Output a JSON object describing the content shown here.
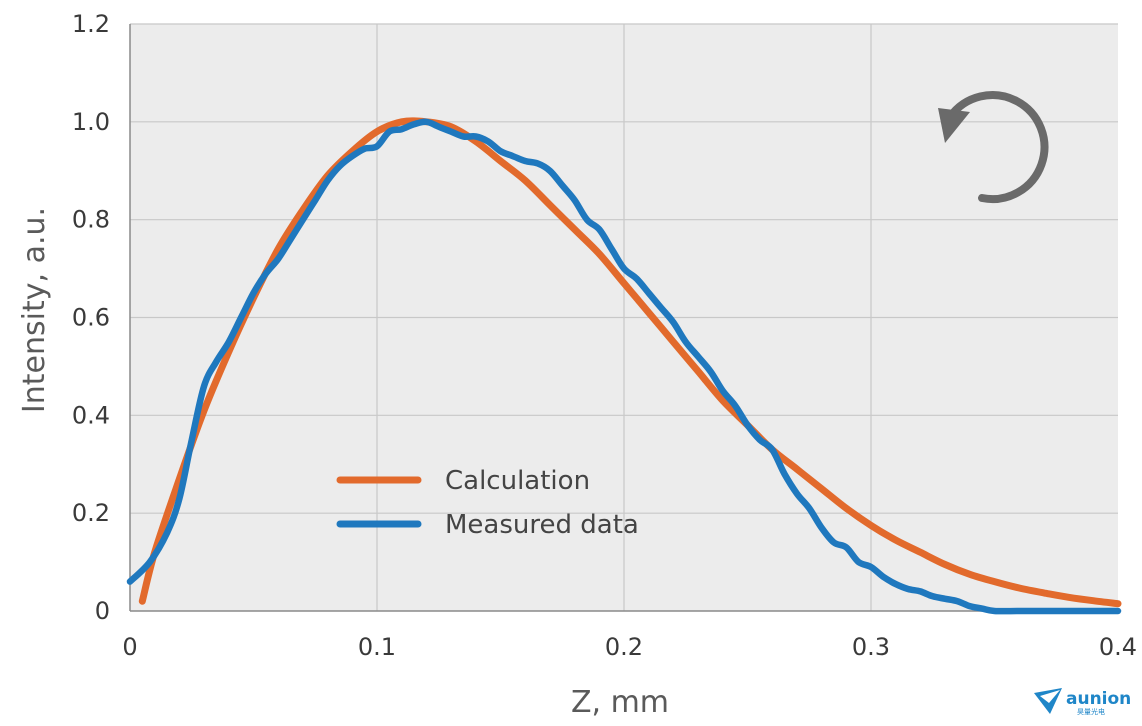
{
  "chart_data": {
    "type": "line",
    "xlabel": "Z, mm",
    "ylabel": "Intensity, a.u.",
    "xlim": [
      0,
      0.4
    ],
    "ylim": [
      0,
      1.2
    ],
    "x_ticks": [
      "0",
      "0.1",
      "0.2",
      "0.3",
      "0.4"
    ],
    "y_ticks": [
      "0",
      "0.2",
      "0.4",
      "0.6",
      "0.8",
      "1.0",
      "1.2"
    ],
    "grid": true,
    "legend_position": "lower-center",
    "series": [
      {
        "name": "Calculation",
        "color": "#e26a2c",
        "x": [
          0.005,
          0.01,
          0.02,
          0.03,
          0.04,
          0.05,
          0.06,
          0.07,
          0.08,
          0.09,
          0.1,
          0.11,
          0.12,
          0.13,
          0.14,
          0.15,
          0.16,
          0.17,
          0.18,
          0.19,
          0.2,
          0.21,
          0.22,
          0.23,
          0.24,
          0.25,
          0.26,
          0.27,
          0.28,
          0.29,
          0.3,
          0.31,
          0.32,
          0.33,
          0.34,
          0.35,
          0.36,
          0.37,
          0.38,
          0.39,
          0.4
        ],
        "values": [
          0.02,
          0.12,
          0.27,
          0.41,
          0.53,
          0.64,
          0.74,
          0.82,
          0.89,
          0.94,
          0.98,
          1.0,
          1.0,
          0.99,
          0.96,
          0.92,
          0.88,
          0.83,
          0.78,
          0.73,
          0.67,
          0.61,
          0.55,
          0.49,
          0.43,
          0.38,
          0.33,
          0.29,
          0.25,
          0.21,
          0.175,
          0.145,
          0.12,
          0.095,
          0.075,
          0.06,
          0.047,
          0.037,
          0.028,
          0.021,
          0.015
        ]
      },
      {
        "name": "Measured data",
        "color": "#1f78be",
        "x": [
          0.0,
          0.008,
          0.015,
          0.02,
          0.025,
          0.03,
          0.035,
          0.04,
          0.045,
          0.05,
          0.055,
          0.06,
          0.065,
          0.07,
          0.075,
          0.08,
          0.085,
          0.09,
          0.095,
          0.1,
          0.105,
          0.11,
          0.115,
          0.12,
          0.125,
          0.13,
          0.135,
          0.14,
          0.145,
          0.15,
          0.155,
          0.16,
          0.165,
          0.17,
          0.175,
          0.18,
          0.185,
          0.19,
          0.195,
          0.2,
          0.205,
          0.21,
          0.215,
          0.22,
          0.225,
          0.23,
          0.235,
          0.24,
          0.245,
          0.25,
          0.255,
          0.26,
          0.265,
          0.27,
          0.275,
          0.28,
          0.285,
          0.29,
          0.295,
          0.3,
          0.305,
          0.31,
          0.315,
          0.32,
          0.325,
          0.33,
          0.335,
          0.34,
          0.345,
          0.35,
          0.36,
          0.37,
          0.38,
          0.39,
          0.4
        ],
        "values": [
          0.06,
          0.1,
          0.16,
          0.23,
          0.35,
          0.46,
          0.51,
          0.55,
          0.6,
          0.65,
          0.69,
          0.72,
          0.76,
          0.8,
          0.84,
          0.88,
          0.91,
          0.93,
          0.945,
          0.95,
          0.98,
          0.985,
          0.995,
          1.0,
          0.99,
          0.98,
          0.97,
          0.97,
          0.96,
          0.94,
          0.93,
          0.92,
          0.915,
          0.9,
          0.87,
          0.84,
          0.8,
          0.78,
          0.74,
          0.7,
          0.68,
          0.65,
          0.62,
          0.59,
          0.55,
          0.52,
          0.49,
          0.45,
          0.42,
          0.38,
          0.35,
          0.33,
          0.28,
          0.24,
          0.21,
          0.17,
          0.14,
          0.13,
          0.1,
          0.09,
          0.07,
          0.055,
          0.045,
          0.04,
          0.03,
          0.025,
          0.02,
          0.01,
          0.005,
          0.0,
          0.0,
          0.0,
          0.0,
          0.0,
          0.0
        ]
      }
    ]
  },
  "decor": {
    "rotation_icon": "counterclockwise-arrow-icon",
    "brand_logo": "aunion-logo",
    "brand_name": "aunion",
    "brand_sub": "昊量光电"
  }
}
